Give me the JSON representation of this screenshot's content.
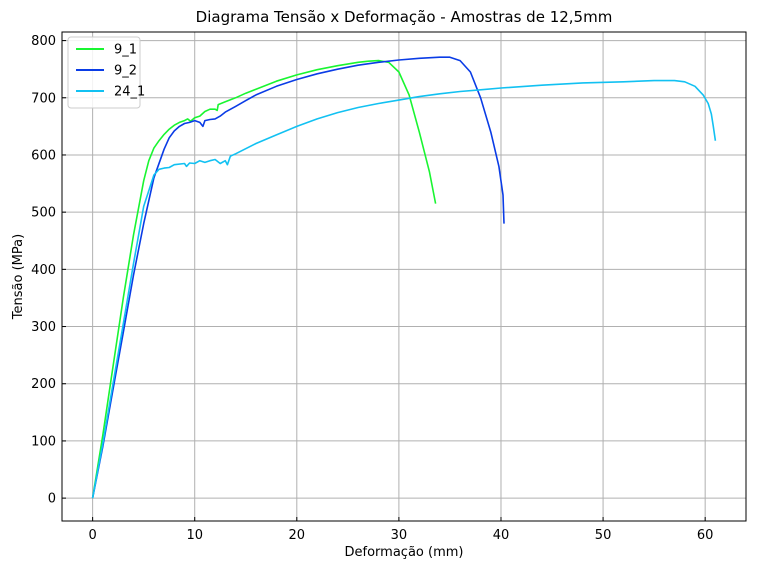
{
  "chart_data": {
    "type": "line",
    "title": "Diagrama Tensão x Deformação - Amostras de 12,5mm",
    "xlabel": "Deformação (mm)",
    "ylabel": "Tensão (MPa)",
    "xlim": [
      -3,
      64
    ],
    "ylim": [
      -40,
      815
    ],
    "xticks": [
      0,
      10,
      20,
      30,
      40,
      50,
      60
    ],
    "yticks": [
      0,
      100,
      200,
      300,
      400,
      500,
      600,
      700,
      800
    ],
    "grid": true,
    "legend_position": "top-left",
    "series": [
      {
        "name": "9_1",
        "color": "#19f531",
        "points": [
          [
            0,
            0
          ],
          [
            1,
            110
          ],
          [
            2,
            230
          ],
          [
            3,
            350
          ],
          [
            4,
            460
          ],
          [
            5,
            555
          ],
          [
            5.5,
            590
          ],
          [
            6,
            612
          ],
          [
            6.5,
            625
          ],
          [
            7,
            636
          ],
          [
            7.5,
            645
          ],
          [
            8,
            652
          ],
          [
            8.5,
            657
          ],
          [
            9,
            660
          ],
          [
            9.3,
            663
          ],
          [
            9.6,
            659
          ],
          [
            10,
            665
          ],
          [
            10.5,
            668
          ],
          [
            11,
            676
          ],
          [
            11.5,
            680
          ],
          [
            12,
            680
          ],
          [
            12.2,
            678
          ],
          [
            12.3,
            688
          ],
          [
            13,
            693
          ],
          [
            14,
            700
          ],
          [
            15,
            708
          ],
          [
            16,
            715
          ],
          [
            18,
            729
          ],
          [
            20,
            740
          ],
          [
            22,
            749
          ],
          [
            24,
            756
          ],
          [
            26,
            762
          ],
          [
            27,
            764
          ],
          [
            28,
            765
          ],
          [
            29,
            762
          ],
          [
            30,
            745
          ],
          [
            31,
            705
          ],
          [
            32,
            640
          ],
          [
            33,
            570
          ],
          [
            33.6,
            515
          ]
        ]
      },
      {
        "name": "9_2",
        "color": "#0a3ce6",
        "points": [
          [
            0,
            0
          ],
          [
            1,
            90
          ],
          [
            2,
            190
          ],
          [
            3,
            290
          ],
          [
            4,
            390
          ],
          [
            5,
            480
          ],
          [
            6,
            560
          ],
          [
            7,
            610
          ],
          [
            7.5,
            630
          ],
          [
            8,
            642
          ],
          [
            8.5,
            650
          ],
          [
            9,
            655
          ],
          [
            9.5,
            657
          ],
          [
            10,
            660
          ],
          [
            10.5,
            657
          ],
          [
            10.8,
            650
          ],
          [
            11,
            660
          ],
          [
            11.5,
            662
          ],
          [
            12,
            663
          ],
          [
            12.5,
            668
          ],
          [
            13,
            675
          ],
          [
            14,
            685
          ],
          [
            15,
            695
          ],
          [
            16,
            705
          ],
          [
            18,
            720
          ],
          [
            20,
            732
          ],
          [
            22,
            742
          ],
          [
            24,
            750
          ],
          [
            26,
            757
          ],
          [
            28,
            762
          ],
          [
            30,
            766
          ],
          [
            32,
            769
          ],
          [
            34,
            771
          ],
          [
            35,
            771
          ],
          [
            36,
            765
          ],
          [
            37,
            745
          ],
          [
            38,
            700
          ],
          [
            39,
            640
          ],
          [
            39.8,
            580
          ],
          [
            40.2,
            530
          ],
          [
            40.3,
            480
          ]
        ]
      },
      {
        "name": "24_1",
        "color": "#12c1f2",
        "points": [
          [
            0,
            0
          ],
          [
            1,
            95
          ],
          [
            2,
            200
          ],
          [
            3,
            305
          ],
          [
            4,
            410
          ],
          [
            5,
            510
          ],
          [
            6,
            565
          ],
          [
            6.5,
            575
          ],
          [
            7,
            577
          ],
          [
            7.5,
            578
          ],
          [
            8,
            583
          ],
          [
            9,
            585
          ],
          [
            9.2,
            580
          ],
          [
            9.5,
            586
          ],
          [
            10,
            585
          ],
          [
            10.5,
            590
          ],
          [
            11,
            587
          ],
          [
            11.5,
            590
          ],
          [
            12,
            592
          ],
          [
            12.5,
            585
          ],
          [
            13,
            590
          ],
          [
            13.2,
            583
          ],
          [
            13.5,
            598
          ],
          [
            14,
            602
          ],
          [
            16,
            620
          ],
          [
            18,
            635
          ],
          [
            20,
            650
          ],
          [
            22,
            663
          ],
          [
            24,
            674
          ],
          [
            26,
            683
          ],
          [
            28,
            690
          ],
          [
            30,
            696
          ],
          [
            32,
            702
          ],
          [
            34,
            707
          ],
          [
            36,
            711
          ],
          [
            38,
            714
          ],
          [
            40,
            717
          ],
          [
            44,
            722
          ],
          [
            48,
            726
          ],
          [
            52,
            728
          ],
          [
            55,
            730
          ],
          [
            57,
            730
          ],
          [
            58,
            728
          ],
          [
            59,
            720
          ],
          [
            59.8,
            705
          ],
          [
            60.3,
            690
          ],
          [
            60.6,
            672
          ],
          [
            60.8,
            650
          ],
          [
            61,
            625
          ]
        ]
      }
    ]
  }
}
